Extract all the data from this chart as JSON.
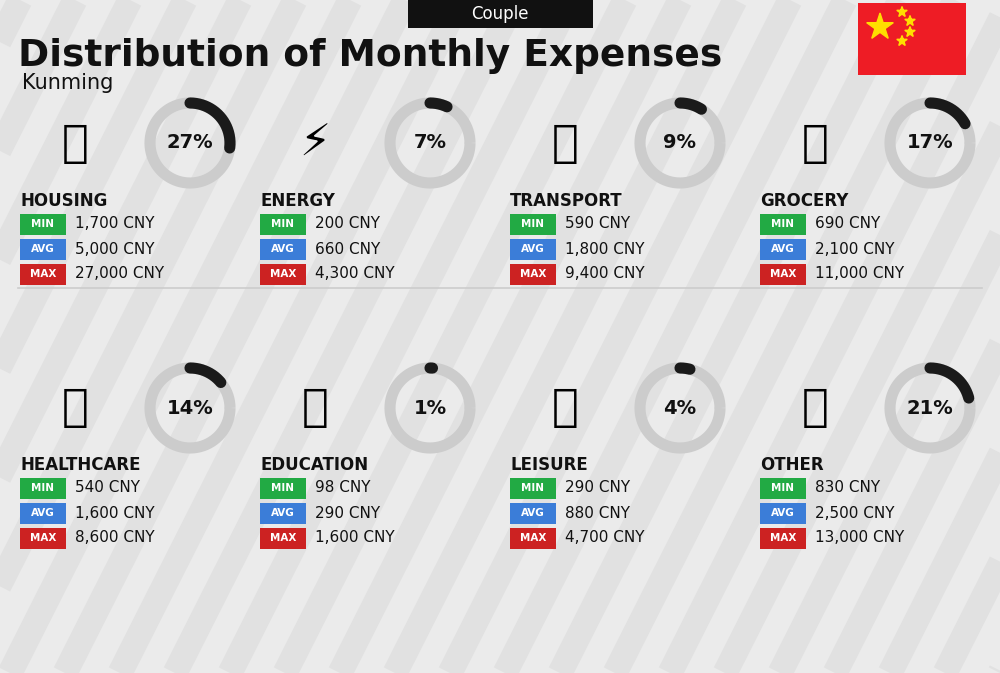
{
  "title": "Distribution of Monthly Expenses",
  "subtitle": "Couple",
  "city": "Kunming",
  "bg_color": "#ebebeb",
  "categories": [
    {
      "name": "HOUSING",
      "pct": 27,
      "min": "1,700 CNY",
      "avg": "5,000 CNY",
      "max": "27,000 CNY",
      "row": 0,
      "col": 0
    },
    {
      "name": "ENERGY",
      "pct": 7,
      "min": "200 CNY",
      "avg": "660 CNY",
      "max": "4,300 CNY",
      "row": 0,
      "col": 1
    },
    {
      "name": "TRANSPORT",
      "pct": 9,
      "min": "590 CNY",
      "avg": "1,800 CNY",
      "max": "9,400 CNY",
      "row": 0,
      "col": 2
    },
    {
      "name": "GROCERY",
      "pct": 17,
      "min": "690 CNY",
      "avg": "2,100 CNY",
      "max": "11,000 CNY",
      "row": 0,
      "col": 3
    },
    {
      "name": "HEALTHCARE",
      "pct": 14,
      "min": "540 CNY",
      "avg": "1,600 CNY",
      "max": "8,600 CNY",
      "row": 1,
      "col": 0
    },
    {
      "name": "EDUCATION",
      "pct": 1,
      "min": "98 CNY",
      "avg": "290 CNY",
      "max": "1,600 CNY",
      "row": 1,
      "col": 1
    },
    {
      "name": "LEISURE",
      "pct": 4,
      "min": "290 CNY",
      "avg": "880 CNY",
      "max": "4,700 CNY",
      "row": 1,
      "col": 2
    },
    {
      "name": "OTHER",
      "pct": 21,
      "min": "830 CNY",
      "avg": "2,500 CNY",
      "max": "13,000 CNY",
      "row": 1,
      "col": 3
    }
  ],
  "min_color": "#22aa44",
  "avg_color": "#3B7DD8",
  "max_color": "#cc2222",
  "ring_dark": "#1a1a1a",
  "ring_light": "#cccccc",
  "text_dark": "#111111",
  "text_white": "#ffffff",
  "stripe_color": "#d5d5d5",
  "flag_red": "#EE1C25",
  "flag_yellow": "#FFDE00",
  "header_bg": "#111111",
  "header_text": "#ffffff",
  "divider_color": "#cccccc"
}
